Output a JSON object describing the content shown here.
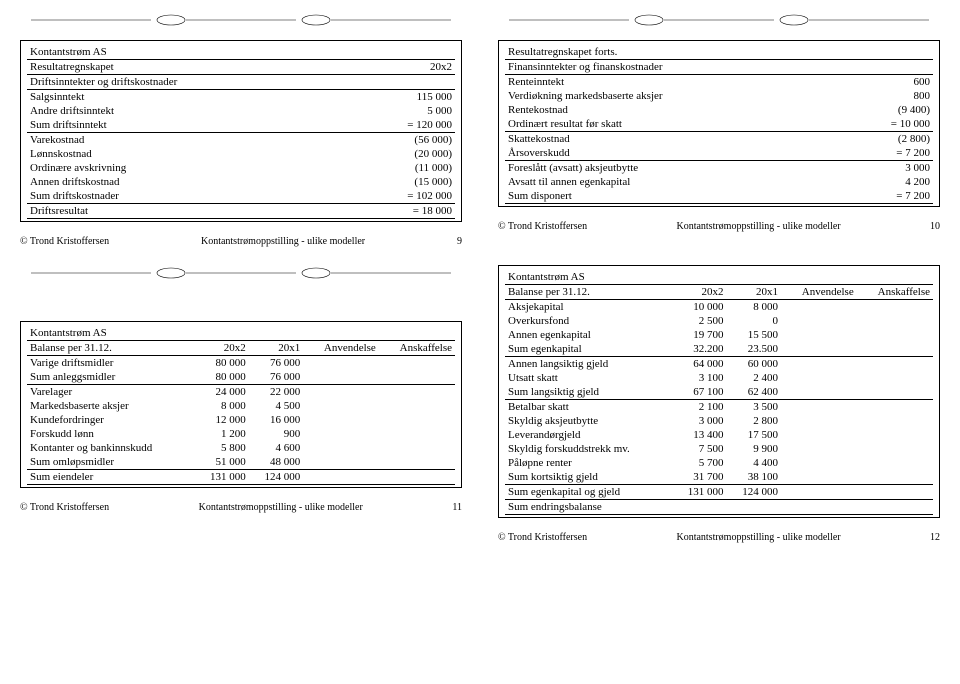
{
  "author": "© Trond Kristoffersen",
  "series": "Kontantstrømoppstilling - ulike modeller",
  "slide1": {
    "title": "Kontantstrøm AS",
    "section": "Resultatregnskapet",
    "periodCol": "20x2",
    "subhead": "Driftsinntekter og driftskostnader",
    "rows": [
      {
        "label": "Salgsinntekt",
        "val": "115 000"
      },
      {
        "label": "Andre driftsinntekt",
        "val": "5 000"
      },
      {
        "label": "Sum driftsinntekt",
        "val": "= 120 000",
        "rule": true
      },
      {
        "label": "Varekostnad",
        "val": "(56 000)"
      },
      {
        "label": "Lønnskostnad",
        "val": "(20 000)"
      },
      {
        "label": "Ordinære avskrivning",
        "val": "(11 000)"
      },
      {
        "label": "Annen driftskostnad",
        "val": "(15 000)"
      },
      {
        "label": "Sum driftskostnader",
        "val": "= 102 000",
        "rule": true
      },
      {
        "label": "Driftsresultat",
        "val": "=  18 000",
        "rule": true
      }
    ],
    "page": "9"
  },
  "slide2": {
    "section": "Resultatregnskapet forts.",
    "subhead": "Finansinntekter og finanskostnader",
    "rows": [
      {
        "label": "Renteinntekt",
        "val": "600"
      },
      {
        "label": "Verdiøkning markedsbaserte aksjer",
        "val": "800"
      },
      {
        "label": "Rentekostnad",
        "val": "(9 400)"
      },
      {
        "label": "Ordinært resultat før skatt",
        "val": "= 10 000",
        "rule": true
      },
      {
        "label": "Skattekostnad",
        "val": "(2 800)"
      },
      {
        "label": "Årsoverskudd",
        "val": "= 7 200",
        "rule": true
      },
      {
        "label": "Foreslått (avsatt) aksjeutbytte",
        "val": "3 000"
      },
      {
        "label": "Avsatt til annen egenkapital",
        "val": "4 200"
      },
      {
        "label": "Sum disponert",
        "val": "= 7 200",
        "rule": true
      }
    ],
    "page": "10"
  },
  "slide3": {
    "title": "Kontantstrøm AS",
    "section": "Balanse per 31.12.",
    "cols": [
      "20x2",
      "20x1",
      "Anvendelse",
      "Anskaffelse"
    ],
    "rows": [
      {
        "label": "Varige driftsmidler",
        "c1": "80 000",
        "c2": "76 000"
      },
      {
        "label": "Sum anleggsmidler",
        "c1": "80 000",
        "c2": "76 000",
        "rule": true
      },
      {
        "label": "Varelager",
        "c1": "24 000",
        "c2": "22 000"
      },
      {
        "label": "Markedsbaserte aksjer",
        "c1": "8 000",
        "c2": "4 500"
      },
      {
        "label": "Kundefordringer",
        "c1": "12 000",
        "c2": "16 000"
      },
      {
        "label": "Forskudd lønn",
        "c1": "1 200",
        "c2": "900"
      },
      {
        "label": "Kontanter og bankinnskudd",
        "c1": "5 800",
        "c2": "4 600"
      },
      {
        "label": "Sum omløpsmidler",
        "c1": "51 000",
        "c2": "48 000",
        "rule": true
      },
      {
        "label": "Sum eiendeler",
        "c1": "131 000",
        "c2": "124 000",
        "rule": true
      }
    ],
    "page": "11"
  },
  "slide4": {
    "title": "Kontantstrøm AS",
    "section": "Balanse per 31.12.",
    "cols": [
      "20x2",
      "20x1",
      "Anvendelse",
      "Anskaffelse"
    ],
    "rows": [
      {
        "label": "Aksjekapital",
        "c1": "10 000",
        "c2": "8 000"
      },
      {
        "label": "Overkursfond",
        "c1": "2 500",
        "c2": "0"
      },
      {
        "label": "Annen egenkapital",
        "c1": "19 700",
        "c2": "15 500"
      },
      {
        "label": "Sum egenkapital",
        "c1": "32.200",
        "c2": "23.500",
        "rule": true
      },
      {
        "label": "Annen langsiktig gjeld",
        "c1": "64 000",
        "c2": "60 000"
      },
      {
        "label": "Utsatt skatt",
        "c1": "3 100",
        "c2": "2 400"
      },
      {
        "label": "Sum langsiktig gjeld",
        "c1": "67 100",
        "c2": "62 400",
        "rule": true
      },
      {
        "label": "Betalbar skatt",
        "c1": "2 100",
        "c2": "3 500"
      },
      {
        "label": "Skyldig aksjeutbytte",
        "c1": "3 000",
        "c2": "2 800"
      },
      {
        "label": "Leverandørgjeld",
        "c1": "13 400",
        "c2": "17 500"
      },
      {
        "label": "Skyldig forskuddstrekk mv.",
        "c1": "7 500",
        "c2": "9 900"
      },
      {
        "label": "Påløpne renter",
        "c1": "5 700",
        "c2": "4 400"
      },
      {
        "label": "Sum kortsiktig gjeld",
        "c1": "31 700",
        "c2": "38 100",
        "rule": true
      },
      {
        "label": "Sum egenkapital og gjeld",
        "c1": "131 000",
        "c2": "124 000",
        "rule": true
      },
      {
        "label": "Sum endringsbalanse",
        "c1": "",
        "c2": "",
        "rule": true
      }
    ],
    "page": "12"
  }
}
